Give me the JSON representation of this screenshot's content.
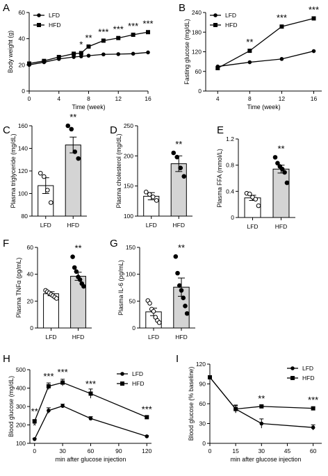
{
  "chart_data": [
    {
      "panel": "A",
      "type": "line",
      "xlabel": "Time (week)",
      "ylabel": "Body weight (g)",
      "xlim": [
        0,
        16
      ],
      "ylim": [
        0,
        60
      ],
      "xticks": [
        0,
        4,
        8,
        12,
        16
      ],
      "yticks": [
        0,
        20,
        40,
        60
      ],
      "legend": "top-left",
      "series": [
        {
          "name": "LFD",
          "marker": "circle",
          "x": [
            0,
            2,
            4,
            6,
            7,
            8,
            10,
            12,
            14,
            16
          ],
          "y": [
            20,
            22,
            24.5,
            26,
            26.5,
            27,
            28,
            28.2,
            28.5,
            29.5
          ]
        },
        {
          "name": "HFD",
          "marker": "square",
          "x": [
            0,
            2,
            4,
            6,
            7,
            8,
            10,
            12,
            14,
            16
          ],
          "y": [
            21,
            23,
            26,
            28.5,
            29,
            34,
            38.5,
            40.5,
            43,
            45
          ]
        }
      ],
      "annotations": [
        {
          "x": 7,
          "text": "*"
        },
        {
          "x": 8,
          "text": "**"
        },
        {
          "x": 10,
          "text": "***"
        },
        {
          "x": 12,
          "text": "***"
        },
        {
          "x": 14,
          "text": "***"
        },
        {
          "x": 16,
          "text": "***"
        }
      ]
    },
    {
      "panel": "B",
      "type": "line",
      "xlabel": "Time (week)",
      "ylabel": "Fasting glucose (mg/dL)",
      "xlim": [
        2.5,
        17
      ],
      "ylim": [
        0,
        240
      ],
      "xticks": [
        4,
        8,
        12,
        16
      ],
      "yticks": [
        0,
        60,
        120,
        180,
        240
      ],
      "legend": "top-left",
      "series": [
        {
          "name": "LFD",
          "marker": "circle",
          "x": [
            4,
            8,
            12,
            16
          ],
          "y": [
            75,
            88,
            98,
            122
          ]
        },
        {
          "name": "HFD",
          "marker": "square",
          "x": [
            4,
            8,
            12,
            16
          ],
          "y": [
            70,
            123,
            197,
            222
          ]
        }
      ],
      "annotations": [
        {
          "x": 8,
          "text": "**"
        },
        {
          "x": 12,
          "text": "***"
        },
        {
          "x": 16,
          "text": "***"
        }
      ]
    },
    {
      "panel": "C",
      "type": "bar",
      "ylabel": "Plasma triglyceride (mg/dL)",
      "categories": [
        "LFD",
        "HFD"
      ],
      "values": [
        107,
        143
      ],
      "errors": [
        7,
        7
      ],
      "fills": [
        "#ffffff",
        "#d4d4d4"
      ],
      "points": [
        [
          118,
          115,
          103,
          92
        ],
        [
          160,
          157,
          137,
          131
        ]
      ],
      "ylim": [
        80,
        160
      ],
      "yticks": [
        80,
        100,
        120,
        140,
        160
      ],
      "annotation": "**"
    },
    {
      "panel": "D",
      "type": "bar",
      "ylabel": "Plasma cholesterol (mg/dL)",
      "categories": [
        "LFD",
        "HFD"
      ],
      "values": [
        133,
        187
      ],
      "errors": [
        6,
        13
      ],
      "fills": [
        "#ffffff",
        "#d4d4d4"
      ],
      "points": [
        [
          140,
          136,
          132,
          126
        ],
        [
          205,
          198,
          180,
          166
        ]
      ],
      "ylim": [
        100,
        250
      ],
      "yticks": [
        100,
        150,
        200,
        250
      ],
      "annotation": "**"
    },
    {
      "panel": "E",
      "type": "bar",
      "ylabel": "Plasma FFA (mmol/L)",
      "categories": [
        "LFD",
        "HFD"
      ],
      "values": [
        0.3,
        0.74
      ],
      "errors": [
        0.04,
        0.06
      ],
      "fills": [
        "#ffffff",
        "#d4d4d4"
      ],
      "points": [
        [
          0.37,
          0.36,
          0.31,
          0.28,
          0.18
        ],
        [
          0.92,
          0.83,
          0.78,
          0.74,
          0.69,
          0.53
        ]
      ],
      "ylim": [
        0,
        1.2
      ],
      "yticks": [
        0,
        0.4,
        0.8,
        1.2
      ],
      "annotation": "**"
    },
    {
      "panel": "F",
      "type": "bar",
      "ylabel": "Plasma TNFα (pg/mL)",
      "categories": [
        "LFD",
        "HFD"
      ],
      "values": [
        25.5,
        38.5
      ],
      "errors": [
        1.5,
        3
      ],
      "fills": [
        "#ffffff",
        "#d4d4d4"
      ],
      "points": [
        [
          28,
          27,
          26,
          25,
          24,
          23,
          22
        ],
        [
          53,
          45,
          42,
          38,
          36,
          33,
          31
        ]
      ],
      "ylim": [
        0,
        60
      ],
      "yticks": [
        0,
        20,
        40,
        60
      ],
      "annotation": "**"
    },
    {
      "panel": "G",
      "type": "bar",
      "ylabel": "Plasma IL-6 (pg/mL)",
      "categories": [
        "LFD",
        "HFD"
      ],
      "values": [
        30,
        76
      ],
      "errors": [
        7,
        17
      ],
      "fills": [
        "#ffffff",
        "#d4d4d4"
      ],
      "points": [
        [
          51,
          46,
          35,
          31,
          20,
          14,
          10
        ],
        [
          133,
          102,
          79,
          70,
          56,
          41,
          27
        ]
      ],
      "ylim": [
        0,
        150
      ],
      "yticks": [
        0,
        50,
        100,
        150
      ],
      "annotation": "**"
    },
    {
      "panel": "H",
      "type": "line",
      "xlabel": "min after glucose injection",
      "ylabel": "Blood glucose (mg/dL)",
      "xlim": [
        -5,
        125
      ],
      "ylim": [
        100,
        500
      ],
      "xticks": [
        0,
        30,
        60,
        90,
        120
      ],
      "yticks": [
        100,
        200,
        300,
        400,
        500
      ],
      "legend": "top-right",
      "series": [
        {
          "name": "LFD",
          "marker": "circle",
          "x": [
            0,
            15,
            30,
            60,
            120
          ],
          "y": [
            123,
            278,
            303,
            235,
            138
          ],
          "err": [
            4,
            15,
            10,
            10,
            4
          ]
        },
        {
          "name": "HFD",
          "marker": "square",
          "x": [
            0,
            15,
            30,
            60,
            120
          ],
          "y": [
            220,
            410,
            430,
            370,
            242
          ],
          "err": [
            6,
            18,
            18,
            25,
            8
          ]
        }
      ],
      "annotations": [
        {
          "x": 0,
          "y": 180,
          "text": "*"
        },
        {
          "x": 0,
          "y": 256,
          "text": "**"
        },
        {
          "x": 15,
          "y": 448,
          "text": "***"
        },
        {
          "x": 30,
          "y": 470,
          "text": "***"
        },
        {
          "x": 60,
          "y": 405,
          "text": "***"
        },
        {
          "x": 120,
          "y": 268,
          "text": "***"
        }
      ]
    },
    {
      "panel": "I",
      "type": "line",
      "xlabel": "min after glucose injection",
      "ylabel": "Blood glucose (% baseline)",
      "xlim": [
        0,
        65
      ],
      "ylim": [
        0,
        120
      ],
      "xticks": [
        0,
        15,
        30,
        45,
        60
      ],
      "yticks": [
        0,
        30,
        60,
        90,
        120
      ],
      "legend": "top-right",
      "series": [
        {
          "name": "LFD",
          "marker": "circle",
          "x": [
            0,
            15,
            30,
            60
          ],
          "y": [
            100,
            52,
            30,
            24
          ],
          "err": [
            0,
            6,
            7,
            4
          ]
        },
        {
          "name": "HFD",
          "marker": "square",
          "x": [
            0,
            15,
            30,
            60
          ],
          "y": [
            100,
            52,
            56,
            53
          ],
          "err": [
            0,
            5,
            2,
            2
          ]
        }
      ],
      "annotations": [
        {
          "x": 30,
          "y": 63,
          "text": "**"
        },
        {
          "x": 60,
          "y": 61,
          "text": "***"
        }
      ]
    }
  ]
}
